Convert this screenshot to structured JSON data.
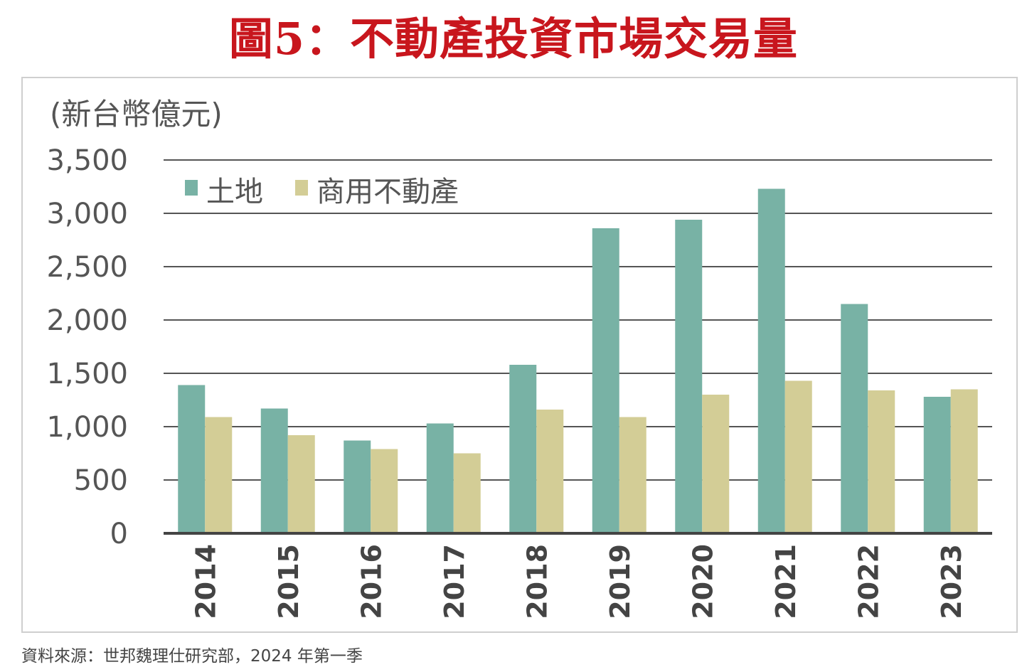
{
  "title": "圖5：不動產投資市場交易量",
  "source": "資料來源：世邦魏理仕研究部，2024 年第一季",
  "chart_data": {
    "type": "bar",
    "title": "圖5：不動產投資市場交易量",
    "ylabel": "(新台幣億元)",
    "xlabel": "",
    "ylim": [
      0,
      3500
    ],
    "yticks": [
      0,
      500,
      1000,
      1500,
      2000,
      2500,
      3000,
      3500
    ],
    "ytick_labels": [
      "0",
      "500",
      "1,000",
      "1,500",
      "2,000",
      "2,500",
      "3,000",
      "3,500"
    ],
    "categories": [
      "2014",
      "2015",
      "2016",
      "2017",
      "2018",
      "2019",
      "2020",
      "2021",
      "2022",
      "2023"
    ],
    "series": [
      {
        "name": "土地",
        "color": "#78b2a5",
        "values": [
          1390,
          1170,
          870,
          1030,
          1580,
          2860,
          2940,
          3230,
          2150,
          1280
        ]
      },
      {
        "name": "商用不動產",
        "color": "#d3cd96",
        "values": [
          1090,
          920,
          790,
          750,
          1160,
          1090,
          1300,
          1430,
          1340,
          1350
        ]
      }
    ],
    "grid": true,
    "legend": "top-left"
  }
}
